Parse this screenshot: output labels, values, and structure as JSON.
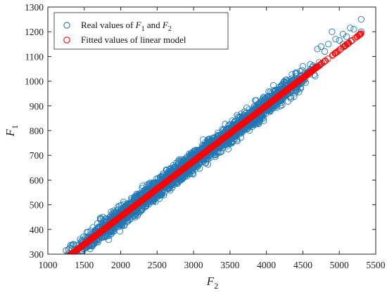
{
  "chart_data": {
    "type": "scatter",
    "title": "",
    "xlabel": {
      "var": "F",
      "sub": "2"
    },
    "ylabel": {
      "var": "F",
      "sub": "1"
    },
    "xlim": [
      1000,
      5500
    ],
    "ylim": [
      300,
      1300
    ],
    "xticks": [
      1000,
      1500,
      2000,
      2500,
      3000,
      3500,
      4000,
      4500,
      5000,
      5500
    ],
    "yticks": [
      300,
      400,
      500,
      600,
      700,
      800,
      900,
      1000,
      1100,
      1200,
      1300
    ],
    "grid": false,
    "legend_position": "top-left",
    "series": [
      {
        "name": "Real values of F1 and F2",
        "legend_parts": [
          "Real values of ",
          "F",
          "1",
          " and ",
          "F",
          "2"
        ],
        "color": "#1f77b4",
        "marker": "open-circle",
        "band": {
          "x_range": [
            1250,
            4700
          ],
          "slope": 0.2245,
          "intercept": 3,
          "y_spread": 38
        },
        "points": [
          [
            1250,
            315
          ],
          [
            1300,
            325
          ],
          [
            1350,
            340
          ],
          [
            4750,
            1140
          ],
          [
            4850,
            1150
          ],
          [
            4950,
            1170
          ],
          [
            5000,
            1165
          ],
          [
            5050,
            1190
          ],
          [
            5100,
            1180
          ],
          [
            5150,
            1215
          ],
          [
            5200,
            1210
          ],
          [
            5300,
            1200
          ],
          [
            5300,
            1250
          ],
          [
            4600,
            1040
          ],
          [
            4500,
            1060
          ],
          [
            4400,
            1030
          ],
          [
            4800,
            1120
          ],
          [
            4900,
            1200
          ],
          [
            5050,
            1150
          ],
          [
            4700,
            1130
          ]
        ]
      },
      {
        "name": "Fitted values of linear model",
        "legend_parts": [
          "Fitted values of linear model"
        ],
        "color": "#ff0000",
        "marker": "open-circle",
        "line": {
          "x_start": 1250,
          "x_end": 5300,
          "slope": 0.2245,
          "intercept": 3,
          "step": 8
        }
      }
    ]
  }
}
